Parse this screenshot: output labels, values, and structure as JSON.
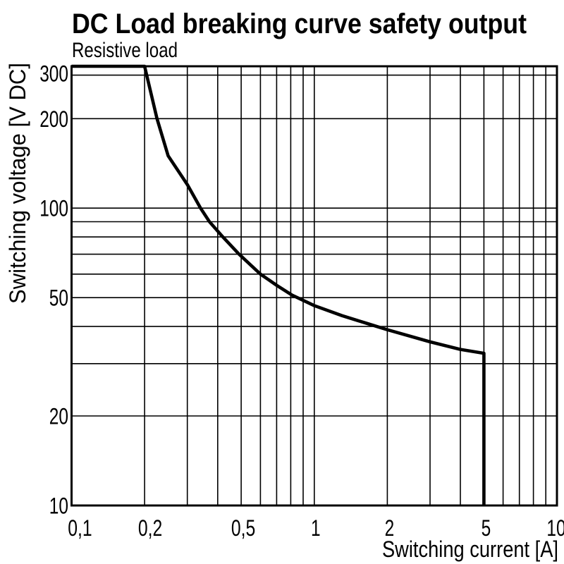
{
  "page": {
    "background": "#ffffff"
  },
  "chart_data": {
    "type": "line",
    "title": "DC Load breaking curve safety output",
    "subtitle": "Resistive load",
    "xlabel": "Switching current [A]",
    "ylabel": "Switching voltage [V DC]",
    "x_scale": "log",
    "y_scale": "log",
    "xlim": [
      0.1,
      10
    ],
    "ylim": [
      10,
      300
    ],
    "grid": true,
    "legend": "none",
    "colors": {
      "curve": "#000000",
      "grid": "#000000",
      "text": "#000000",
      "background": "#ffffff"
    },
    "x_gridlines": [
      0.1,
      0.2,
      0.3,
      0.4,
      0.5,
      0.6,
      0.7,
      0.8,
      0.9,
      1,
      2,
      3,
      4,
      5,
      6,
      7,
      8,
      9,
      10
    ],
    "y_gridlines": [
      10,
      20,
      30,
      40,
      50,
      60,
      70,
      80,
      90,
      100,
      200,
      280,
      300
    ],
    "x_ticks": [
      {
        "v": 0.1,
        "label": "0,1"
      },
      {
        "v": 0.2,
        "label": "0,2"
      },
      {
        "v": 0.5,
        "label": "0,5"
      },
      {
        "v": 1,
        "label": "1"
      },
      {
        "v": 2,
        "label": "2"
      },
      {
        "v": 5,
        "label": "5"
      },
      {
        "v": 10,
        "label": "10"
      }
    ],
    "y_ticks": [
      {
        "v": 300,
        "label": "300"
      },
      {
        "v": 200,
        "label": "200"
      },
      {
        "v": 100,
        "label": "100"
      },
      {
        "v": 50,
        "label": "50"
      },
      {
        "v": 20,
        "label": "20"
      },
      {
        "v": 10,
        "label": "10"
      }
    ],
    "series": [
      {
        "name": "Resistive load",
        "points": [
          [
            0.1,
            300
          ],
          [
            0.2,
            300
          ],
          [
            0.225,
            200
          ],
          [
            0.25,
            150
          ],
          [
            0.3,
            120
          ],
          [
            0.34,
            100
          ],
          [
            0.37,
            90
          ],
          [
            0.42,
            80
          ],
          [
            0.49,
            70
          ],
          [
            0.6,
            60
          ],
          [
            0.7,
            55
          ],
          [
            0.81,
            51
          ],
          [
            1.0,
            47
          ],
          [
            1.3,
            43.5
          ],
          [
            1.64,
            41
          ],
          [
            2,
            39
          ],
          [
            3,
            35.5
          ],
          [
            4,
            33.5
          ],
          [
            5,
            32.5
          ],
          [
            5,
            10
          ]
        ]
      }
    ]
  }
}
